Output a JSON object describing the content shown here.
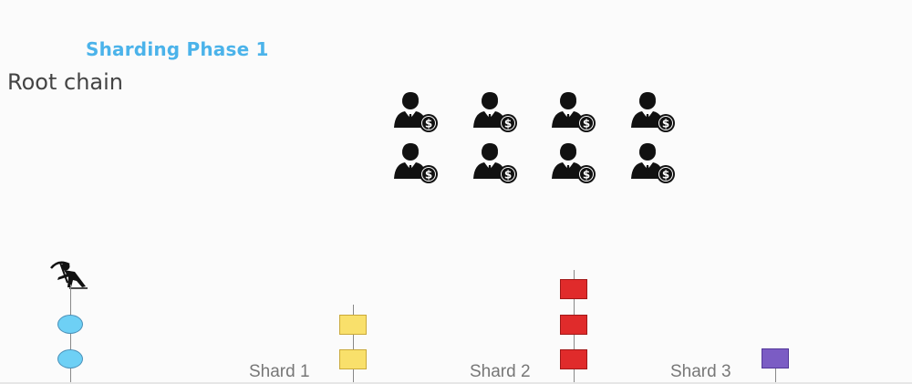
{
  "header": {
    "title": "Sharding Phase 1",
    "subtitle": "Root chain"
  },
  "colors": {
    "title": "#4bb3ea",
    "root_block": "#6ed0f5",
    "shard1_block": "#f9e06b",
    "shard1_border": "#caa93a",
    "shard2_block": "#e02b2b",
    "shard2_border": "#a11818",
    "shard3_block": "#7b5cc4",
    "shard3_border": "#53389a"
  },
  "icons": {
    "validator": "businessman-with-dollar-coin-icon",
    "miner": "miner-with-pickaxe-icon"
  },
  "shards": [
    {
      "label": "Shard 1",
      "blocks": 2
    },
    {
      "label": "Shard 2",
      "blocks": 3
    },
    {
      "label": "Shard 3",
      "blocks": 1
    }
  ],
  "root_chain": {
    "blocks": 2
  },
  "validators_count": 8
}
